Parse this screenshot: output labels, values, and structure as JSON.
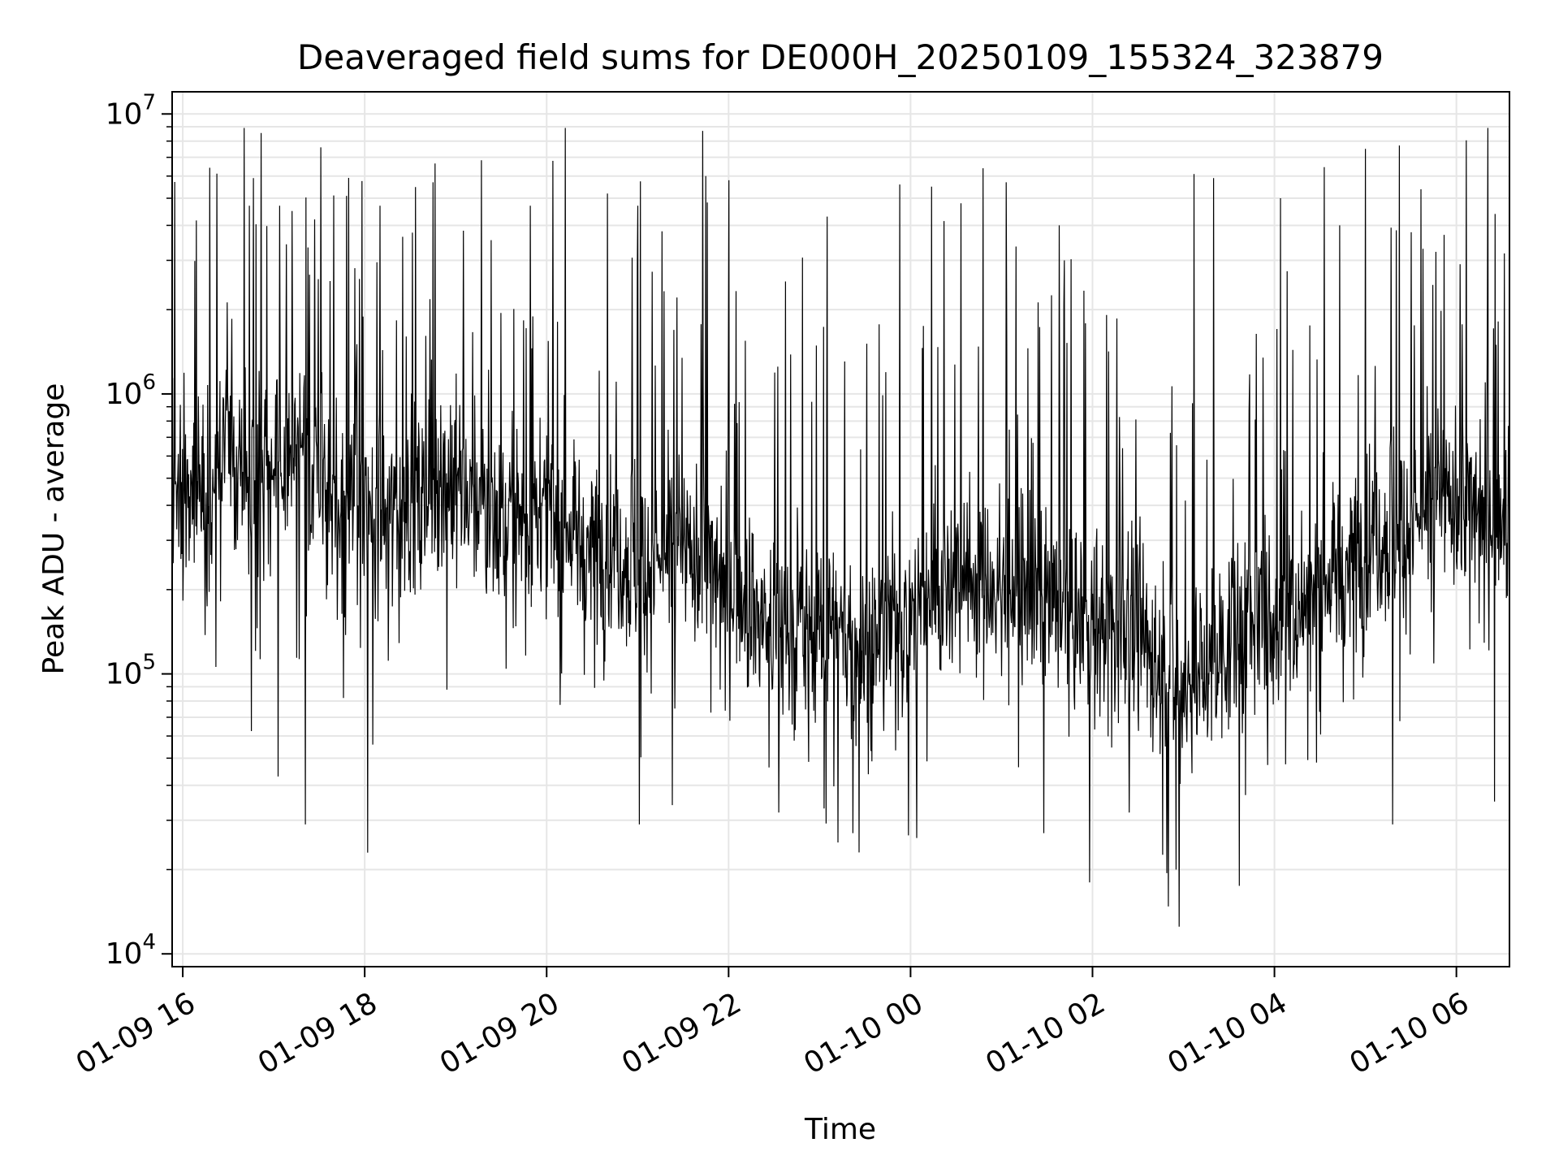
{
  "chart_data": {
    "type": "line",
    "title": "Deaveraged field sums for DE000H_20250109_155324_323879",
    "xlabel": "Time",
    "ylabel": "Peak ADU - average",
    "yscale": "log",
    "ylim": [
      9000,
      12000000
    ],
    "xlim": [
      "2025-01-09T15:53",
      "2025-01-10T06:35"
    ],
    "grid": true,
    "colors": {
      "line": "#000000",
      "grid": "#e6e6e6",
      "axes": "#000000"
    },
    "x_ticks": [
      {
        "value": "2025-01-09T16:00",
        "label": "01-09 16"
      },
      {
        "value": "2025-01-09T18:00",
        "label": "01-09 18"
      },
      {
        "value": "2025-01-09T20:00",
        "label": "01-09 20"
      },
      {
        "value": "2025-01-09T22:00",
        "label": "01-09 22"
      },
      {
        "value": "2025-01-10T00:00",
        "label": "01-10 00"
      },
      {
        "value": "2025-01-10T02:00",
        "label": "01-10 02"
      },
      {
        "value": "2025-01-10T04:00",
        "label": "01-10 04"
      },
      {
        "value": "2025-01-10T06:00",
        "label": "01-10 06"
      }
    ],
    "y_ticks": [
      {
        "value": 10000,
        "base": "10",
        "exp": "4"
      },
      {
        "value": 100000,
        "base": "10",
        "exp": "5"
      },
      {
        "value": 1000000,
        "base": "10",
        "exp": "6"
      },
      {
        "value": 10000000,
        "base": "10",
        "exp": "7"
      }
    ],
    "series": [
      {
        "x": [
          "2025-01-09T15:53",
          "2025-01-09T16:15",
          "2025-01-09T16:30",
          "2025-01-09T17:00",
          "2025-01-09T17:30",
          "2025-01-09T18:00",
          "2025-01-09T18:30",
          "2025-01-09T19:00",
          "2025-01-09T19:30",
          "2025-01-09T20:00",
          "2025-01-09T20:30",
          "2025-01-09T21:00",
          "2025-01-09T21:30",
          "2025-01-09T22:00",
          "2025-01-09T22:30",
          "2025-01-09T23:00",
          "2025-01-09T23:30",
          "2025-01-10T00:00",
          "2025-01-10T00:30",
          "2025-01-10T01:00",
          "2025-01-10T01:30",
          "2025-01-10T02:00",
          "2025-01-10T02:30",
          "2025-01-10T03:00",
          "2025-01-10T03:30",
          "2025-01-10T04:00",
          "2025-01-10T04:30",
          "2025-01-10T05:00",
          "2025-01-10T05:30",
          "2025-01-10T06:00",
          "2025-01-10T06:35"
        ],
        "y": [
          450000,
          500000,
          600000,
          550000,
          500000,
          320000,
          420000,
          500000,
          350000,
          350000,
          300000,
          250000,
          260000,
          220000,
          140000,
          150000,
          120000,
          160000,
          240000,
          200000,
          180000,
          150000,
          140000,
          85000,
          130000,
          150000,
          200000,
          300000,
          350000,
          400000,
          380000
        ],
        "spikes": [
          {
            "x": "2025-01-09T16:44",
            "y": 4700000
          },
          {
            "x": "2025-01-09T17:04",
            "y": 4700000
          },
          {
            "x": "2025-01-09T17:31",
            "y": 7600000
          },
          {
            "x": "2025-01-09T17:48",
            "y": 5100000
          },
          {
            "x": "2025-01-09T18:10",
            "y": 4700000
          },
          {
            "x": "2025-01-09T18:45",
            "y": 5700000
          },
          {
            "x": "2025-01-09T20:04",
            "y": 6800000
          },
          {
            "x": "2025-01-09T20:40",
            "y": 5200000
          },
          {
            "x": "2025-01-09T21:00",
            "y": 4700000
          },
          {
            "x": "2025-01-09T21:43",
            "y": 8700000
          },
          {
            "x": "2025-01-09T21:45",
            "y": 6000000
          },
          {
            "x": "2025-01-09T23:05",
            "y": 4300000
          },
          {
            "x": "2025-01-09T23:53",
            "y": 5600000
          },
          {
            "x": "2025-01-10T00:14",
            "y": 5500000
          },
          {
            "x": "2025-01-10T00:48",
            "y": 6400000
          },
          {
            "x": "2025-01-10T01:03",
            "y": 5700000
          },
          {
            "x": "2025-01-10T01:38",
            "y": 4000000
          },
          {
            "x": "2025-01-10T03:07",
            "y": 6100000
          },
          {
            "x": "2025-01-10T03:20",
            "y": 5900000
          },
          {
            "x": "2025-01-10T04:04",
            "y": 5000000
          },
          {
            "x": "2025-01-10T04:43",
            "y": 4000000
          },
          {
            "x": "2025-01-10T05:00",
            "y": 7500000
          },
          {
            "x": "2025-01-10T05:52",
            "y": 3700000
          }
        ],
        "dips": [
          {
            "x": "2025-01-09T17:03",
            "y": 43000
          },
          {
            "x": "2025-01-09T17:21",
            "y": 29000
          },
          {
            "x": "2025-01-09T18:02",
            "y": 23000
          },
          {
            "x": "2025-01-09T21:01",
            "y": 29000
          },
          {
            "x": "2025-01-09T21:23",
            "y": 34000
          },
          {
            "x": "2025-01-09T23:12",
            "y": 25000
          },
          {
            "x": "2025-01-09T23:22",
            "y": 27000
          },
          {
            "x": "2025-01-10T01:28",
            "y": 27000
          },
          {
            "x": "2025-01-10T01:58",
            "y": 18000
          },
          {
            "x": "2025-01-10T02:55",
            "y": 20000
          },
          {
            "x": "2025-01-10T02:57",
            "y": 12500
          },
          {
            "x": "2025-01-10T03:37",
            "y": 17500
          },
          {
            "x": "2025-01-10T05:18",
            "y": 29000
          },
          {
            "x": "2025-01-10T06:25",
            "y": 35000
          }
        ]
      }
    ]
  }
}
